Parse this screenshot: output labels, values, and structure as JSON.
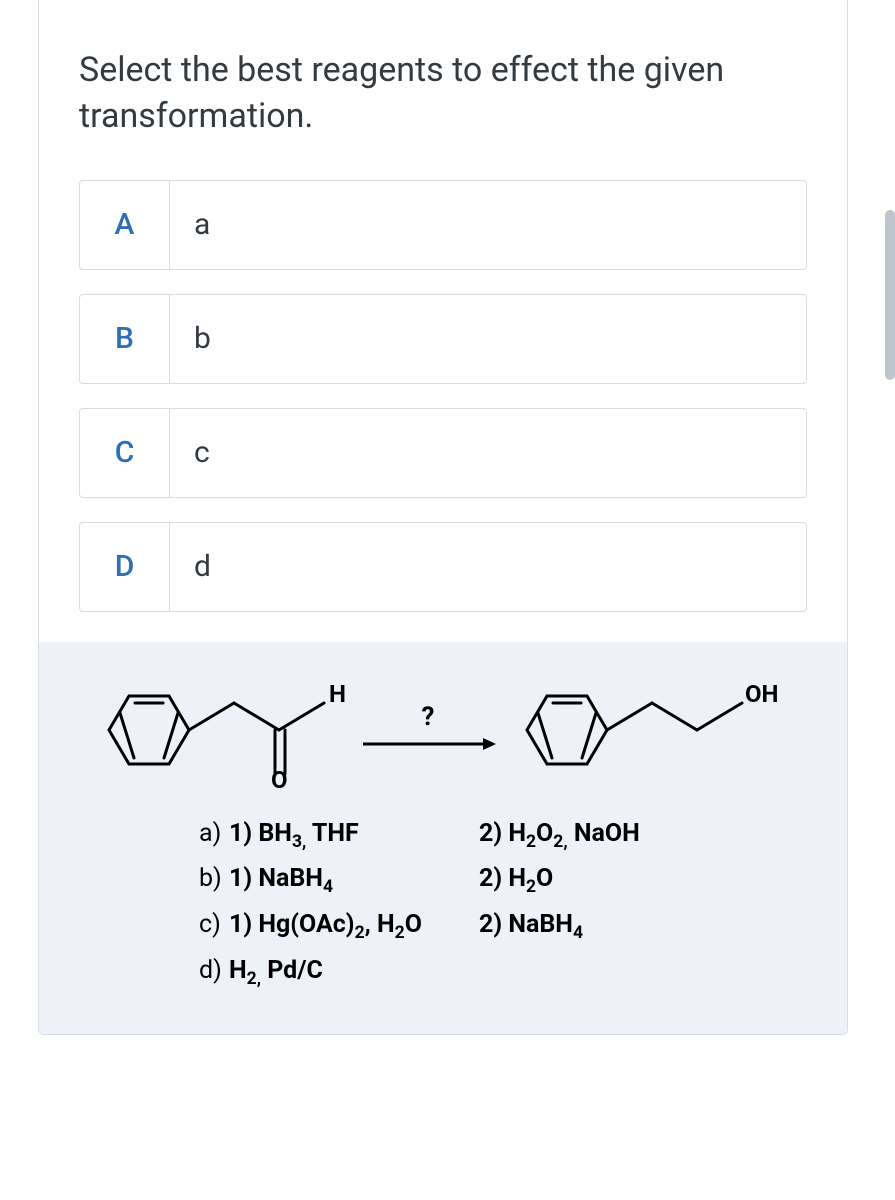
{
  "question_text": "Select the best reagents to effect the given transformation.",
  "options": [
    {
      "key": "A",
      "label": "a"
    },
    {
      "key": "B",
      "label": "b"
    },
    {
      "key": "C",
      "label": "c"
    },
    {
      "key": "D",
      "label": "d"
    }
  ],
  "reaction": {
    "arrow_label": "?",
    "start_label_H": "H",
    "start_label_O": "O",
    "product_label_OH": "OH"
  },
  "reagents": [
    {
      "prefix": "a)",
      "step1_html": "1) BH<sub>3,</sub> THF",
      "step2_html": "2) H<sub>2</sub>O<sub>2,</sub> NaOH"
    },
    {
      "prefix": "b)",
      "step1_html": "1) NaBH<sub>4</sub>",
      "step2_html": "2) H<sub>2</sub>O"
    },
    {
      "prefix": "c)",
      "step1_html": "1) Hg(OAc)<sub>2</sub>, H<sub>2</sub>O",
      "step2_html": "2) NaBH<sub>4</sub>"
    },
    {
      "prefix": "d)",
      "step1_html": "H<sub>2,</sub> Pd/C",
      "step2_html": ""
    }
  ],
  "colors": {
    "card_border": "#d8dde2",
    "text": "#333a40",
    "key_color": "#2e6fb5",
    "figure_bg": "#eef2f8",
    "scrollbar": "#bfc5cc"
  }
}
